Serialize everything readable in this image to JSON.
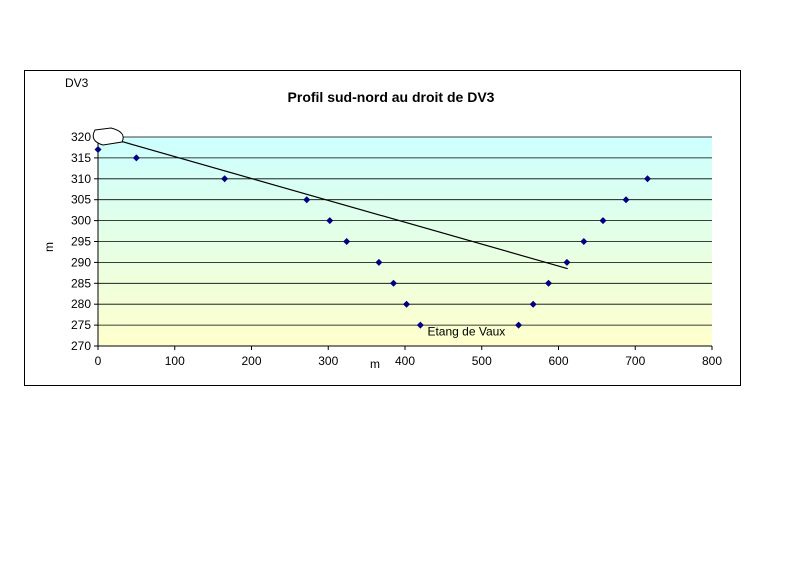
{
  "chart_data": {
    "type": "scatter",
    "title": "Profil sud-nord au droit de DV3",
    "corner_label": "DV3",
    "xlabel": "m",
    "ylabel": "m",
    "xlim": [
      0,
      800
    ],
    "ylim": [
      270,
      320
    ],
    "x_ticks": [
      0,
      100,
      200,
      300,
      400,
      500,
      600,
      700,
      800
    ],
    "y_ticks": [
      270,
      275,
      280,
      285,
      290,
      295,
      300,
      305,
      310,
      315,
      320
    ],
    "grid": true,
    "legend": "none",
    "background_gradient": [
      "#ccffff",
      "#ffffcc"
    ],
    "marker_color": "#000080",
    "points": [
      {
        "x": 0,
        "y": 317
      },
      {
        "x": 50,
        "y": 315
      },
      {
        "x": 165,
        "y": 310
      },
      {
        "x": 272,
        "y": 305
      },
      {
        "x": 302,
        "y": 300
      },
      {
        "x": 324,
        "y": 295
      },
      {
        "x": 366,
        "y": 290
      },
      {
        "x": 385,
        "y": 285
      },
      {
        "x": 402,
        "y": 280
      },
      {
        "x": 420,
        "y": 275
      },
      {
        "x": 548,
        "y": 275
      },
      {
        "x": 567,
        "y": 280
      },
      {
        "x": 587,
        "y": 285
      },
      {
        "x": 611,
        "y": 290
      },
      {
        "x": 633,
        "y": 295
      },
      {
        "x": 658,
        "y": 300
      },
      {
        "x": 688,
        "y": 305
      },
      {
        "x": 716,
        "y": 310
      }
    ],
    "sight_line": {
      "from": {
        "x": 20,
        "y": 319.5
      },
      "to": {
        "x": 612,
        "y": 288.5
      }
    },
    "annotations": [
      {
        "text": "Etang de Vaux",
        "x": 480,
        "y": 272.5
      }
    ]
  }
}
